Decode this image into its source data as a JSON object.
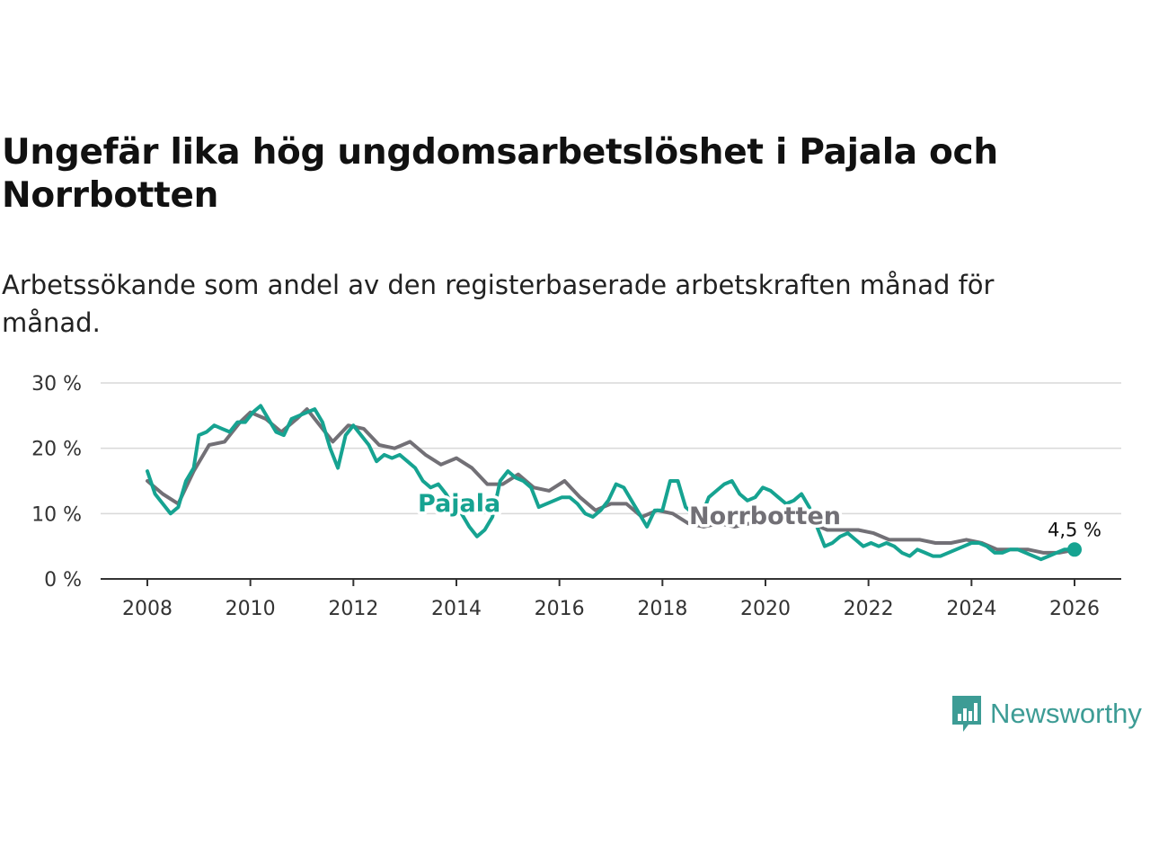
{
  "title": "Ungefär lika hög ungdomsarbetslöshet i Pajala och Norrbotten",
  "subtitle": "Arbetssökande som andel av den registerbaserade arbetskraften månad för månad.",
  "brand": {
    "name": "Newsworthy",
    "color": "#3d9c95",
    "icon": "bar-chart-speech-icon"
  },
  "chart_data": {
    "type": "line",
    "title": "Ungefär lika hög ungdomsarbetslöshet i Pajala och Norrbotten",
    "xlabel": "",
    "ylabel": "",
    "xlim": [
      2007.7,
      2027
    ],
    "ylim": [
      0,
      30
    ],
    "x_ticks": [
      2008,
      2010,
      2012,
      2014,
      2016,
      2018,
      2020,
      2022,
      2024,
      2026
    ],
    "x_tick_labels": [
      "2008",
      "2010",
      "2012",
      "2014",
      "2016",
      "2018",
      "2020",
      "2022",
      "2024",
      "2026"
    ],
    "y_ticks": [
      0,
      10,
      20,
      30
    ],
    "y_tick_labels": [
      "0 %",
      "10 %",
      "20 %",
      "30 %"
    ],
    "grid": true,
    "legend": "inline labels",
    "series": [
      {
        "name": "Norrbotten",
        "color": "#727076",
        "x": [
          2008.0,
          2008.3,
          2008.6,
          2008.9,
          2009.2,
          2009.5,
          2009.8,
          2010.0,
          2010.3,
          2010.6,
          2010.9,
          2011.1,
          2011.3,
          2011.6,
          2011.9,
          2012.2,
          2012.5,
          2012.8,
          2013.1,
          2013.4,
          2013.7,
          2014.0,
          2014.3,
          2014.6,
          2014.9,
          2015.2,
          2015.5,
          2015.8,
          2016.1,
          2016.4,
          2016.7,
          2017.0,
          2017.3,
          2017.6,
          2017.9,
          2018.2,
          2018.5,
          2018.8,
          2019.1,
          2019.4,
          2019.7,
          2020.0,
          2020.3,
          2020.6,
          2020.9,
          2021.2,
          2021.5,
          2021.8,
          2022.1,
          2022.4,
          2022.7,
          2023.0,
          2023.3,
          2023.6,
          2023.9,
          2024.2,
          2024.5,
          2024.8,
          2025.1,
          2025.4,
          2025.7,
          2025.9
        ],
        "y": [
          15.0,
          13.0,
          11.5,
          16.5,
          20.5,
          21.0,
          24.0,
          25.5,
          24.5,
          22.5,
          24.5,
          26.0,
          24.0,
          21.0,
          23.5,
          23.0,
          20.5,
          20.0,
          21.0,
          19.0,
          17.5,
          18.5,
          17.0,
          14.5,
          14.5,
          16.0,
          14.0,
          13.5,
          15.0,
          12.5,
          10.5,
          11.5,
          11.5,
          9.5,
          10.5,
          10.0,
          8.5,
          8.0,
          8.5,
          8.0,
          8.5,
          9.0,
          9.5,
          8.5,
          8.5,
          7.5,
          7.5,
          7.5,
          7.0,
          6.0,
          6.0,
          6.0,
          5.5,
          5.5,
          6.0,
          5.5,
          4.5,
          4.5,
          4.5,
          4.0,
          4.0,
          4.3
        ]
      },
      {
        "name": "Pajala",
        "color": "#16a391",
        "x": [
          2008.0,
          2008.15,
          2008.3,
          2008.45,
          2008.6,
          2008.75,
          2008.9,
          2009.0,
          2009.15,
          2009.3,
          2009.45,
          2009.6,
          2009.75,
          2009.9,
          2010.05,
          2010.2,
          2010.35,
          2010.5,
          2010.65,
          2010.8,
          2010.95,
          2011.1,
          2011.25,
          2011.4,
          2011.55,
          2011.7,
          2011.85,
          2012.0,
          2012.15,
          2012.3,
          2012.45,
          2012.6,
          2012.75,
          2012.9,
          2013.05,
          2013.2,
          2013.35,
          2013.5,
          2013.65,
          2013.8,
          2013.95,
          2014.1,
          2014.25,
          2014.4,
          2014.55,
          2014.7,
          2014.85,
          2015.0,
          2015.15,
          2015.3,
          2015.45,
          2015.6,
          2015.75,
          2015.9,
          2016.05,
          2016.2,
          2016.35,
          2016.5,
          2016.65,
          2016.8,
          2016.95,
          2017.1,
          2017.25,
          2017.4,
          2017.55,
          2017.7,
          2017.85,
          2018.0,
          2018.15,
          2018.3,
          2018.45,
          2018.6,
          2018.75,
          2018.9,
          2019.05,
          2019.2,
          2019.35,
          2019.5,
          2019.65,
          2019.8,
          2019.95,
          2020.1,
          2020.25,
          2020.4,
          2020.55,
          2020.7,
          2020.85,
          2021.0,
          2021.15,
          2021.3,
          2021.45,
          2021.6,
          2021.75,
          2021.9,
          2022.05,
          2022.2,
          2022.35,
          2022.5,
          2022.65,
          2022.8,
          2022.95,
          2023.1,
          2023.25,
          2023.4,
          2023.55,
          2023.7,
          2023.85,
          2024.0,
          2024.15,
          2024.3,
          2024.45,
          2024.6,
          2024.75,
          2024.9,
          2025.05,
          2025.2,
          2025.35,
          2025.5,
          2025.65,
          2025.8,
          2026.0
        ],
        "y": [
          16.5,
          13.0,
          11.5,
          10.0,
          11.0,
          15.0,
          17.0,
          22.0,
          22.5,
          23.5,
          23.0,
          22.5,
          24.0,
          24.0,
          25.5,
          26.5,
          24.5,
          22.5,
          22.0,
          24.5,
          25.0,
          25.5,
          26.0,
          24.0,
          20.0,
          17.0,
          22.0,
          23.5,
          22.0,
          20.5,
          18.0,
          19.0,
          18.5,
          19.0,
          18.0,
          17.0,
          15.0,
          14.0,
          14.5,
          13.0,
          11.0,
          10.0,
          8.0,
          6.5,
          7.5,
          9.5,
          15.0,
          16.5,
          15.5,
          15.0,
          14.0,
          11.0,
          11.5,
          12.0,
          12.5,
          12.5,
          11.5,
          10.0,
          9.5,
          10.5,
          12.0,
          14.5,
          14.0,
          12.0,
          10.0,
          8.0,
          10.5,
          10.5,
          15.0,
          15.0,
          11.0,
          10.0,
          9.5,
          12.5,
          13.5,
          14.5,
          15.0,
          13.0,
          12.0,
          12.5,
          14.0,
          13.5,
          12.5,
          11.5,
          12.0,
          13.0,
          11.0,
          8.0,
          5.0,
          5.5,
          6.5,
          7.0,
          6.0,
          5.0,
          5.5,
          5.0,
          5.5,
          5.0,
          4.0,
          3.5,
          4.5,
          4.0,
          3.5,
          3.5,
          4.0,
          4.5,
          5.0,
          5.5,
          5.5,
          5.0,
          4.0,
          4.0,
          4.5,
          4.5,
          4.0,
          3.5,
          3.0,
          3.5,
          4.0,
          4.5,
          4.5
        ]
      }
    ],
    "annotations": [
      {
        "text": "Pajala",
        "series": "Pajala"
      },
      {
        "text": "Norrbotten",
        "series": "Norrbotten"
      },
      {
        "text": "4,5 %",
        "series": "Pajala",
        "x": 2026.0,
        "y": 4.5
      }
    ]
  }
}
